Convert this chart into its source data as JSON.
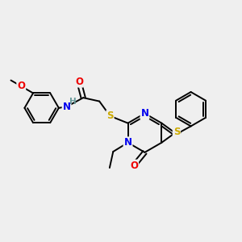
{
  "bg_color": "#efefef",
  "atom_colors": {
    "C": "#000000",
    "N": "#0000ee",
    "O": "#ee0000",
    "S": "#ccaa00",
    "H": "#669999"
  },
  "bond_color": "#000000",
  "figsize": [
    3.0,
    3.0
  ],
  "dpi": 100
}
